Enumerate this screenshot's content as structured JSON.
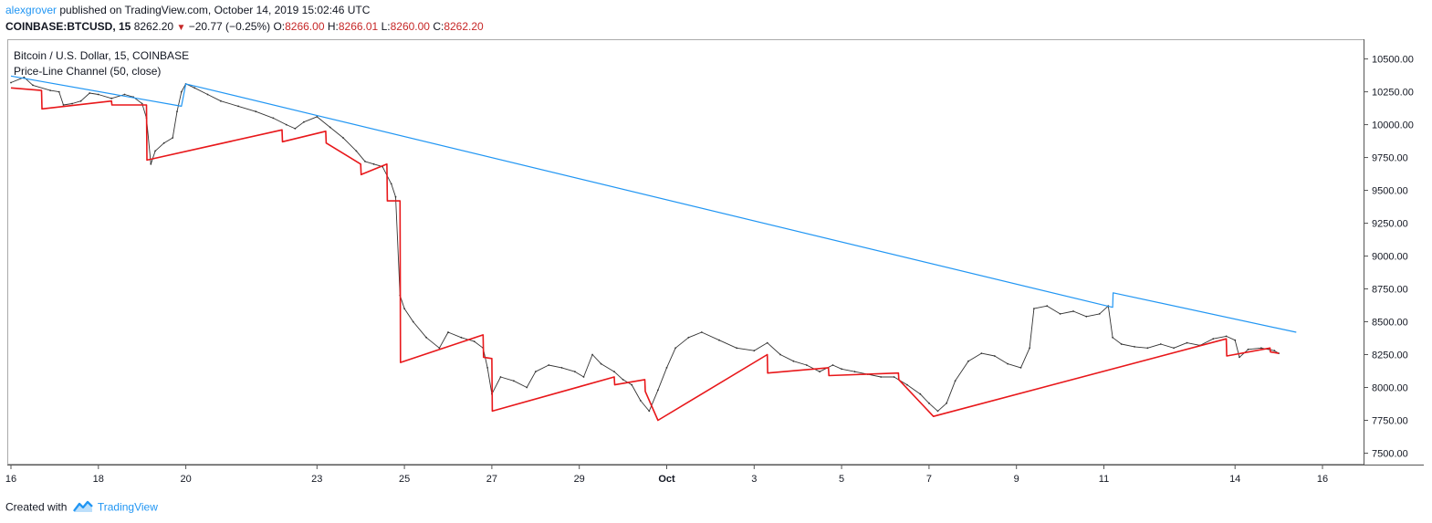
{
  "header": {
    "user": "alexgrover",
    "published_text": "published on TradingView.com, October 14, 2019 15:02:46 UTC"
  },
  "symbol_bar": {
    "symbol": "COINBASE:BTCUSD, 15",
    "last": "8262.20",
    "change": "−20.77 (−0.25%)",
    "o_label": "O:",
    "o_value": "8266.00",
    "h_label": "H:",
    "h_value": "8266.01",
    "l_label": "L:",
    "l_value": "8260.00",
    "c_label": "C:",
    "c_value": "8262.20"
  },
  "legend": {
    "series_title": "Bitcoin / U.S. Dollar, 15, COINBASE",
    "indicator_title": "Price-Line Channel (50, close)"
  },
  "footer": {
    "created_with": "Created with",
    "brand": "TradingView"
  },
  "colors": {
    "price": "#333333",
    "upper_line": "#2196f3",
    "lower_line": "#e8171a",
    "axis": "#555555",
    "brand": "#2196f3",
    "negative": "#c62828"
  },
  "chart_data": {
    "type": "line",
    "x_domain": [
      "2019-09-16",
      "2019-10-16"
    ],
    "ylim": [
      7420,
      10650
    ],
    "y_ticks": [
      "10500.00",
      "10250.00",
      "10000.00",
      "9750.00",
      "9500.00",
      "9250.00",
      "9000.00",
      "8750.00",
      "8500.00",
      "8250.00",
      "8000.00",
      "7750.00",
      "7500.00"
    ],
    "x_ticks": [
      {
        "label": "16",
        "day": 0
      },
      {
        "label": "18",
        "day": 2
      },
      {
        "label": "20",
        "day": 4
      },
      {
        "label": "23",
        "day": 7
      },
      {
        "label": "25",
        "day": 9
      },
      {
        "label": "27",
        "day": 11
      },
      {
        "label": "29",
        "day": 13
      },
      {
        "label": "Oct",
        "day": 15
      },
      {
        "label": "3",
        "day": 17
      },
      {
        "label": "5",
        "day": 19
      },
      {
        "label": "7",
        "day": 21
      },
      {
        "label": "9",
        "day": 23
      },
      {
        "label": "11",
        "day": 25
      },
      {
        "label": "14",
        "day": 28
      },
      {
        "label": "16",
        "day": 30
      }
    ],
    "series": [
      {
        "name": "Bitcoin / U.S. Dollar, 15, COINBASE",
        "points": [
          [
            0,
            10320
          ],
          [
            0.3,
            10360
          ],
          [
            0.5,
            10300
          ],
          [
            0.9,
            10260
          ],
          [
            1.1,
            10250
          ],
          [
            1.2,
            10150
          ],
          [
            1.4,
            10160
          ],
          [
            1.6,
            10180
          ],
          [
            1.8,
            10240
          ],
          [
            2.0,
            10230
          ],
          [
            2.3,
            10200
          ],
          [
            2.6,
            10230
          ],
          [
            2.8,
            10210
          ],
          [
            3.0,
            10160
          ],
          [
            3.1,
            10050
          ],
          [
            3.2,
            9700
          ],
          [
            3.3,
            9800
          ],
          [
            3.5,
            9860
          ],
          [
            3.7,
            9900
          ],
          [
            3.8,
            10100
          ],
          [
            3.9,
            10250
          ],
          [
            4.0,
            10310
          ],
          [
            4.2,
            10280
          ],
          [
            4.5,
            10230
          ],
          [
            4.8,
            10180
          ],
          [
            5.2,
            10140
          ],
          [
            5.6,
            10100
          ],
          [
            6.0,
            10050
          ],
          [
            6.3,
            10000
          ],
          [
            6.5,
            9970
          ],
          [
            6.7,
            10020
          ],
          [
            7.0,
            10060
          ],
          [
            7.3,
            9980
          ],
          [
            7.6,
            9900
          ],
          [
            7.9,
            9800
          ],
          [
            8.1,
            9720
          ],
          [
            8.3,
            9700
          ],
          [
            8.5,
            9680
          ],
          [
            8.7,
            9550
          ],
          [
            8.8,
            9450
          ],
          [
            8.9,
            8700
          ],
          [
            9.0,
            8600
          ],
          [
            9.2,
            8500
          ],
          [
            9.5,
            8380
          ],
          [
            9.8,
            8300
          ],
          [
            10.0,
            8420
          ],
          [
            10.3,
            8380
          ],
          [
            10.6,
            8350
          ],
          [
            10.8,
            8300
          ],
          [
            10.9,
            8150
          ],
          [
            11.0,
            7950
          ],
          [
            11.2,
            8080
          ],
          [
            11.5,
            8050
          ],
          [
            11.8,
            8000
          ],
          [
            12.0,
            8120
          ],
          [
            12.3,
            8170
          ],
          [
            12.6,
            8150
          ],
          [
            12.9,
            8120
          ],
          [
            13.1,
            8080
          ],
          [
            13.3,
            8250
          ],
          [
            13.5,
            8180
          ],
          [
            13.8,
            8120
          ],
          [
            14.0,
            8060
          ],
          [
            14.2,
            8020
          ],
          [
            14.4,
            7900
          ],
          [
            14.6,
            7820
          ],
          [
            14.8,
            7980
          ],
          [
            15.0,
            8150
          ],
          [
            15.2,
            8300
          ],
          [
            15.5,
            8380
          ],
          [
            15.8,
            8420
          ],
          [
            16.2,
            8360
          ],
          [
            16.6,
            8300
          ],
          [
            17.0,
            8280
          ],
          [
            17.3,
            8340
          ],
          [
            17.6,
            8250
          ],
          [
            17.9,
            8200
          ],
          [
            18.2,
            8170
          ],
          [
            18.5,
            8120
          ],
          [
            18.8,
            8170
          ],
          [
            19.0,
            8140
          ],
          [
            19.3,
            8120
          ],
          [
            19.6,
            8100
          ],
          [
            19.9,
            8080
          ],
          [
            20.2,
            8080
          ],
          [
            20.5,
            8020
          ],
          [
            20.8,
            7950
          ],
          [
            21.0,
            7880
          ],
          [
            21.2,
            7820
          ],
          [
            21.4,
            7880
          ],
          [
            21.6,
            8050
          ],
          [
            21.9,
            8200
          ],
          [
            22.2,
            8260
          ],
          [
            22.5,
            8240
          ],
          [
            22.8,
            8180
          ],
          [
            23.1,
            8150
          ],
          [
            23.3,
            8300
          ],
          [
            23.4,
            8600
          ],
          [
            23.7,
            8620
          ],
          [
            24.0,
            8560
          ],
          [
            24.3,
            8580
          ],
          [
            24.6,
            8540
          ],
          [
            24.9,
            8560
          ],
          [
            25.1,
            8620
          ],
          [
            25.2,
            8380
          ],
          [
            25.4,
            8330
          ],
          [
            25.7,
            8310
          ],
          [
            26.0,
            8300
          ],
          [
            26.3,
            8330
          ],
          [
            26.6,
            8300
          ],
          [
            26.9,
            8340
          ],
          [
            27.2,
            8320
          ],
          [
            27.5,
            8370
          ],
          [
            27.8,
            8390
          ],
          [
            28.0,
            8360
          ],
          [
            28.1,
            8230
          ],
          [
            28.3,
            8290
          ],
          [
            28.6,
            8300
          ],
          [
            28.9,
            8280
          ],
          [
            29.0,
            8260
          ]
        ]
      },
      {
        "name": "Price-Line Channel (50, close) upper",
        "points": [
          [
            0,
            10370
          ],
          [
            3.9,
            10140
          ],
          [
            4.0,
            10310
          ],
          [
            25.2,
            8610
          ],
          [
            25.21,
            8720
          ],
          [
            29.4,
            8420
          ]
        ]
      },
      {
        "name": "Price-Line Channel (50, close) lower",
        "points": [
          [
            0,
            10280
          ],
          [
            0.7,
            10260
          ],
          [
            0.71,
            10120
          ],
          [
            2.3,
            10180
          ],
          [
            2.31,
            10150
          ],
          [
            3.1,
            10150
          ],
          [
            3.11,
            9730
          ],
          [
            6.2,
            9960
          ],
          [
            6.21,
            9870
          ],
          [
            7.2,
            9950
          ],
          [
            7.21,
            9860
          ],
          [
            8.0,
            9700
          ],
          [
            8.01,
            9620
          ],
          [
            8.6,
            9700
          ],
          [
            8.61,
            9420
          ],
          [
            8.9,
            9420
          ],
          [
            8.91,
            8190
          ],
          [
            10.8,
            8400
          ],
          [
            10.81,
            8230
          ],
          [
            11.0,
            8220
          ],
          [
            11.01,
            7820
          ],
          [
            13.8,
            8080
          ],
          [
            13.81,
            8020
          ],
          [
            14.5,
            8060
          ],
          [
            14.51,
            7970
          ],
          [
            14.8,
            7750
          ],
          [
            17.3,
            8250
          ],
          [
            17.31,
            8110
          ],
          [
            18.7,
            8150
          ],
          [
            18.71,
            8090
          ],
          [
            20.3,
            8110
          ],
          [
            20.31,
            8060
          ],
          [
            21.1,
            7780
          ],
          [
            27.8,
            8370
          ],
          [
            27.81,
            8240
          ],
          [
            28.8,
            8300
          ],
          [
            28.81,
            8270
          ],
          [
            29.0,
            8260
          ]
        ]
      }
    ],
    "grid": false
  }
}
